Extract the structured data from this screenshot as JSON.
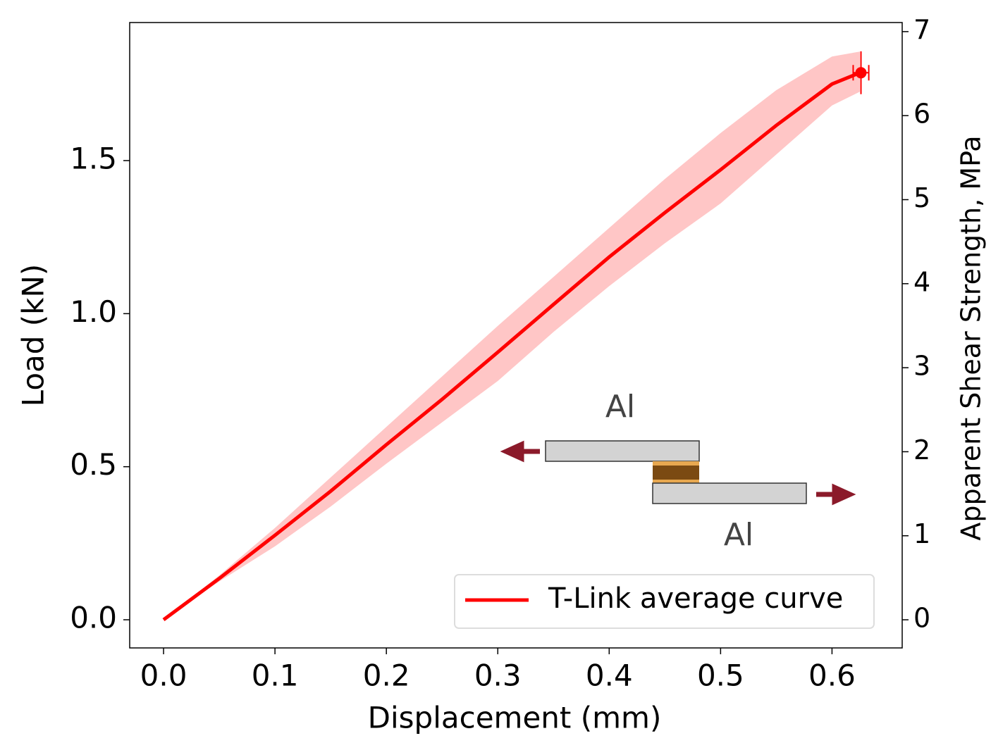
{
  "chart_data": {
    "type": "line",
    "xlabel": "Displacement (mm)",
    "ylabel": "Load (kN)",
    "y2label": "Apparent Shear Strength, MPa",
    "x": [
      0,
      0.05,
      0.1,
      0.15,
      0.2,
      0.25,
      0.3,
      0.35,
      0.4,
      0.45,
      0.5,
      0.55,
      0.6,
      0.625
    ],
    "series": [
      {
        "name": "T-Link average curve",
        "color": "#ff0000",
        "values": [
          0,
          0.135,
          0.276,
          0.42,
          0.572,
          0.72,
          0.874,
          1.03,
          1.185,
          1.33,
          1.47,
          1.615,
          1.75,
          1.787
        ]
      }
    ],
    "band": {
      "color": "#ffb3b3",
      "lower": [
        0,
        0.125,
        0.24,
        0.37,
        0.51,
        0.645,
        0.78,
        0.94,
        1.09,
        1.23,
        1.36,
        1.52,
        1.68,
        1.725
      ],
      "upper": [
        0,
        0.145,
        0.3,
        0.465,
        0.63,
        0.795,
        0.96,
        1.12,
        1.28,
        1.44,
        1.59,
        1.73,
        1.84,
        1.856
      ]
    },
    "error_point": {
      "x": 0.626,
      "y": 1.787,
      "xerr": 0.007,
      "yerr": 0.07
    },
    "xlim": [
      -0.0304,
      0.663
    ],
    "ylim": [
      -0.092,
      1.951
    ],
    "y2lim": [
      -0.335,
      7.108
    ],
    "xticks": [
      {
        "value": 0,
        "label": "0.0"
      },
      0.1,
      0.2,
      0.3,
      0.4,
      0.5,
      0.6
    ],
    "yticks": [
      {
        "value": 0,
        "label": "0.0"
      },
      0.5,
      {
        "value": 1,
        "label": "1.0"
      },
      1.5
    ],
    "y2ticks": [
      0,
      1,
      2,
      3,
      4,
      5,
      6,
      7
    ],
    "legend": "lower right",
    "inset_labels": [
      "Al",
      "Al"
    ]
  }
}
